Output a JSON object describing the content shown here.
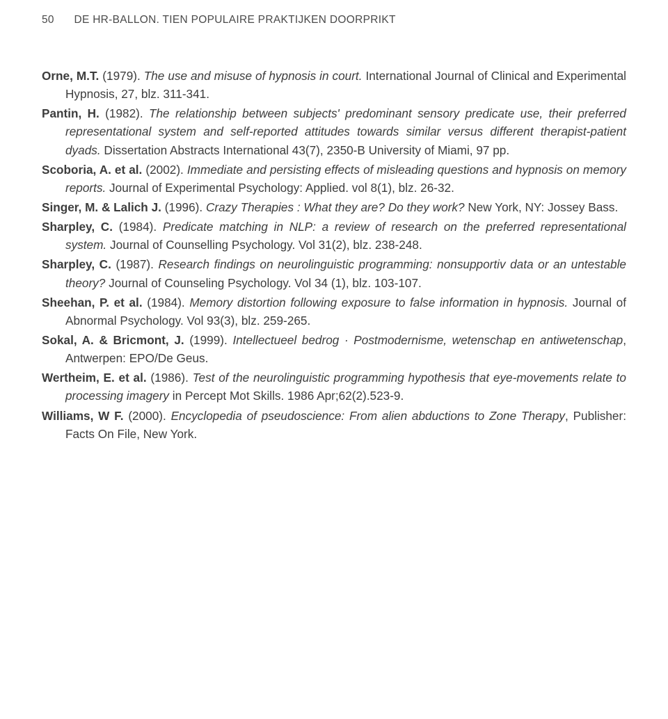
{
  "header": {
    "page_number": "50",
    "running_title": "DE HR-BALLON. TIEN POPULAIRE PRAKTIJKEN DOORPRIKT"
  },
  "references": [
    {
      "author": "Orne, M.T.",
      "year": "(1979).",
      "title_i": "The use and misuse of hypnosis in court.",
      "tail": " International Journal of Clinical and Experimental Hypnosis, 27, blz. 311-341."
    },
    {
      "author": "Pantin, H.",
      "year": "(1982).",
      "title_i": "The relationship between subjects' predominant sensory predicate use, their preferred representational system and self-reported attitudes towards similar versus different therapist-patient dyads.",
      "tail": " Dissertation Abstracts International 43(7), 2350-B University of Miami, 97 pp."
    },
    {
      "author": "Scoboria, A. et al.",
      "year": "(2002).",
      "title_i": "Immediate and persisting effects of misleading questions and hypnosis on memory reports.",
      "tail": " Journal of Experimental Psychology: Applied. vol 8(1), blz. 26-32."
    },
    {
      "author": "Singer, M. & Lalich J.",
      "year": "(1996).",
      "title_i": "Crazy Therapies : What they are? Do they work?",
      "tail": " New York, NY: Jossey Bass."
    },
    {
      "author": "Sharpley, C.",
      "year": "(1984).",
      "title_i": "Predicate matching in NLP: a review of research on the preferred representational system.",
      "tail": " Journal of Counselling Psychology. Vol 31(2), blz. 238-248."
    },
    {
      "author": "Sharpley, C.",
      "year": "(1987).",
      "title_i": "Research findings on neurolinguistic programming: nonsupportiv data or an untestable theory?",
      "tail": " Journal of Counseling Psychology. Vol 34 (1), blz. 103-107."
    },
    {
      "author": "Sheehan, P. et al.",
      "year": "(1984).",
      "title_i": "Memory distortion following exposure to false information in hypnosis.",
      "tail": " Journal of Abnormal Psychology. Vol 93(3), blz. 259-265."
    },
    {
      "author": "Sokal, A. & Bricmont, J.",
      "year": "(1999).",
      "title_i": "Intellectueel bedrog · Postmodernisme, wetenschap en antiwetenschap",
      "tail": ", Antwerpen: EPO/De Geus."
    },
    {
      "author": "Wertheim, E. et al.",
      "year": "(1986).",
      "title_i": "Test of the neurolinguistic programming hypothesis that eye-movements relate to processing imagery",
      "tail": " in Percept Mot Skills. 1986 Apr;62(2).523-9."
    },
    {
      "author": "Williams, W F.",
      "year": "(2000).",
      "title_i": "Encyclopedia of pseudoscience: From alien abductions to Zone Therapy",
      "tail": ", Publisher: Facts On File, New York."
    }
  ]
}
